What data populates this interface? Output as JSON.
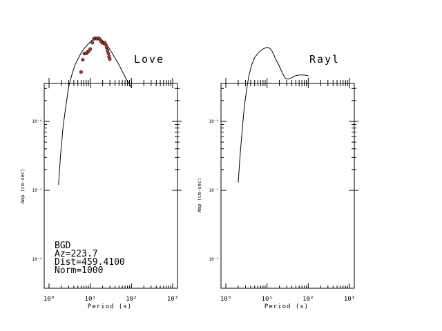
{
  "chart_data": [
    {
      "type": "line",
      "title": "Love",
      "xlabel": "Period (s)",
      "ylabel": "Amp (cm-sec)",
      "xscale": "log",
      "yscale": "log",
      "xlim": [
        1,
        1000
      ],
      "ylim": [
        0.0003,
        0.00025
      ],
      "x_tick_labels": [
        "10⁰",
        "10¹",
        "10²",
        "10³"
      ],
      "y_tick_labels": [
        "10⁻⁴",
        "10⁻⁵",
        "10⁻⁶"
      ],
      "annotations": [
        "BGD",
        "Az=223.7",
        "Dist=459.4100",
        "Norm=1000"
      ],
      "series": [
        {
          "style": "line",
          "color": "#000000",
          "x": [
            1.7,
            1.9,
            2.2,
            2.6,
            3.0,
            3.6,
            4.3,
            5.2,
            6.0,
            7.0,
            8.0,
            9.0,
            10,
            11,
            12,
            13,
            14,
            16,
            18,
            20,
            23,
            27,
            33,
            40,
            50,
            60,
            75,
            100
          ],
          "y": [
            1.2e-07,
            3.2e-07,
            8.5e-07,
            1.8e-06,
            3.2e-06,
            4.8e-06,
            6.7e-06,
            8.3e-06,
            9.8e-06,
            1.12e-05,
            1.23e-05,
            1.33e-05,
            1.42e-05,
            1.5e-05,
            1.55e-05,
            1.59e-05,
            1.62e-05,
            1.61e-05,
            1.56e-05,
            1.48e-05,
            1.37e-05,
            1.21e-05,
            1.01e-05,
            8.3e-06,
            6.6e-06,
            5.3e-06,
            4.1e-06,
            3.1e-06
          ]
        },
        {
          "style": "markers",
          "color": "#c0392b",
          "x": [
            6.0,
            6.6,
            7.2,
            8.0,
            8.6,
            9.2,
            10.0,
            11.2,
            12.3,
            13.4,
            14.6,
            15.8,
            17.0,
            18.3,
            19.7,
            21.0,
            22.4,
            23.8,
            25.0,
            26.2,
            27.4,
            28.6,
            29.8
          ],
          "y": [
            5.2e-06,
            7.8e-06,
            9.6e-06,
            9.7e-06,
            1.01e-05,
            1.04e-05,
            1.12e-05,
            1.38e-05,
            1.57e-05,
            1.61e-05,
            1.58e-05,
            1.61e-05,
            1.56e-05,
            1.45e-05,
            1.38e-05,
            1.36e-05,
            1.39e-05,
            1.3e-05,
            1.18e-05,
            1.07e-05,
            9.7e-06,
            8.7e-06,
            8e-06
          ]
        }
      ]
    },
    {
      "type": "line",
      "title": "Rayl",
      "xlabel": "Period (s)",
      "ylabel": "Amp (cm-sec)",
      "xscale": "log",
      "yscale": "log",
      "xlim": [
        1,
        1000
      ],
      "ylim": [
        0.0003,
        0.00025
      ],
      "x_tick_labels": [
        "10⁰",
        "10¹",
        "10²",
        "10³"
      ],
      "y_tick_labels": [
        "10⁻⁴",
        "10⁻⁵",
        "10⁻⁶"
      ],
      "series": [
        {
          "style": "line",
          "color": "#000000",
          "x": [
            2.0,
            2.2,
            2.5,
            2.8,
            3.2,
            3.6,
            4.2,
            5.0,
            6.0,
            7.0,
            8.0,
            9.0,
            10,
            11,
            12,
            13,
            14,
            15,
            16,
            18,
            20,
            22,
            25,
            28,
            32,
            36,
            40,
            45,
            50,
            60,
            70,
            80,
            100
          ],
          "y": [
            1.3e-07,
            3e-07,
            7.5e-07,
            1.6e-06,
            2.9e-06,
            4.5e-06,
            6.5e-06,
            8.4e-06,
            9.7e-06,
            1.06e-05,
            1.12e-05,
            1.16e-05,
            1.18e-05,
            1.17e-05,
            1.13e-05,
            1.06e-05,
            9.8e-06,
            8.9e-06,
            8.1e-06,
            7.1e-06,
            6.3e-06,
            5.5e-06,
            4.7e-06,
            4.2e-06,
            4.1e-06,
            4.2e-06,
            4.3e-06,
            4.5e-06,
            4.6e-06,
            4.7e-06,
            4.7e-06,
            4.7e-06,
            4.6e-06
          ]
        }
      ]
    }
  ]
}
